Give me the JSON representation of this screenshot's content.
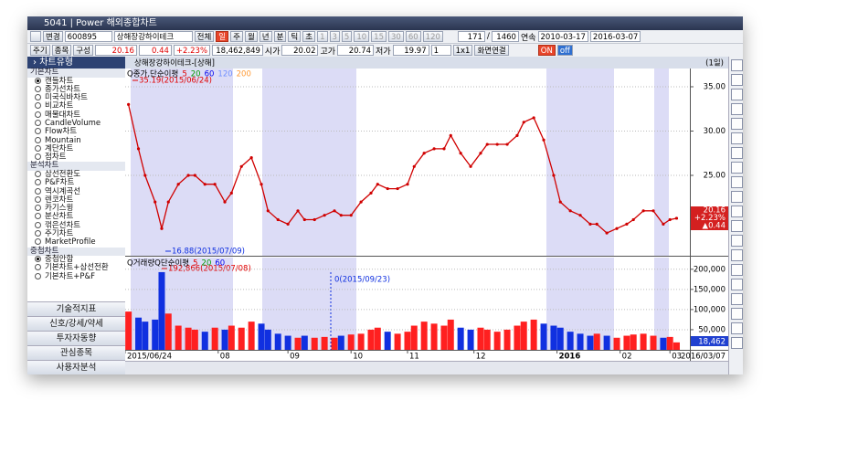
{
  "window": {
    "title": "5041 | Power 해외종합차트"
  },
  "toolbar": {
    "change": "변경",
    "code": "600895",
    "name": "상해장강하이테크",
    "all": "전체",
    "periods": [
      "일",
      "주",
      "월",
      "년",
      "분",
      "틱",
      "초"
    ],
    "intervals": [
      "1",
      "3",
      "5",
      "10",
      "15",
      "30",
      "60",
      "120"
    ],
    "count": "171",
    "sep": "/",
    "total": "1460",
    "continuous": "연속",
    "start": "2010-03-17",
    "end": "2016-03-07"
  },
  "quote": {
    "buttons": [
      "주기",
      "종목",
      "구성"
    ],
    "price": "20.16",
    "change": "0.44",
    "pct": "+2.23%",
    "volume": "18,462,849",
    "open_label": "시가",
    "open": "20.02",
    "high_label": "고가",
    "high": "20.74",
    "low_label": "저가",
    "low": "19.97",
    "split": "1",
    "layout": "1x1",
    "link": "화면연결",
    "on": "ON",
    "off": "off"
  },
  "sidebar": {
    "header": "차트유형",
    "groups": [
      {
        "title": "기본차트",
        "selected": 0,
        "items": [
          "캔들차트",
          "종가선차트",
          "미국식바차트",
          "비교차트",
          "매물대차트",
          "CandleVolume",
          "Flow차트",
          "Mountain",
          "계단차트",
          "점차트"
        ]
      },
      {
        "title": "분석차트",
        "items": [
          "삼선전환도",
          "P&F차트",
          "역시계곡선",
          "렌코차트",
          "카기스윙",
          "분산차트",
          "꺾은선차트",
          "주기차트",
          "MarketProfile"
        ]
      },
      {
        "title": "중첩차트",
        "selected": 0,
        "items": [
          "중첩안함",
          "기본차트+삼선전환",
          "기본차트+P&F"
        ]
      }
    ],
    "buttons": [
      "기술적지표",
      "신호/강세/약세",
      "투자자동향",
      "관심종목",
      "사용자분석"
    ]
  },
  "chart_data": [
    {
      "type": "line",
      "title": "상해장강하이테크-[상해]",
      "period": "(1일)",
      "legend": "Q종가,단순이평",
      "ma_periods": [
        "5",
        "20",
        "60",
        "120",
        "200"
      ],
      "ma_colors": [
        "#e00000",
        "#009900",
        "#0000ee",
        "#6f8fff",
        "#ff9933"
      ],
      "annotations": [
        "35.19(2015/06/24)",
        "16.88(2015/07/09)"
      ],
      "x": [
        1,
        4,
        6,
        9,
        11,
        13,
        16,
        19,
        21,
        24,
        27,
        30,
        32,
        35,
        38,
        41,
        43,
        46,
        49,
        52,
        54,
        57,
        60,
        63,
        65,
        68,
        71,
        74,
        76,
        79,
        82,
        85,
        87,
        90,
        93,
        96,
        98,
        101,
        104,
        107,
        109,
        112,
        115,
        118,
        120,
        123,
        126,
        129,
        131,
        134,
        137,
        140,
        142,
        145,
        148,
        151,
        153,
        156,
        159,
        162,
        164,
        166
      ],
      "xlim": [
        0,
        170
      ],
      "series": [
        {
          "name": "종가",
          "color": "#d00000",
          "values": [
            33,
            28,
            25,
            22,
            19,
            22,
            24,
            25,
            25,
            24,
            24,
            22,
            23,
            26,
            27,
            24,
            21,
            20,
            19.5,
            21,
            20,
            20,
            20.5,
            21,
            20.5,
            20.5,
            22,
            23,
            24,
            23.5,
            23.5,
            24,
            26,
            27.5,
            28,
            28,
            29.5,
            27.5,
            26,
            27.5,
            28.5,
            28.5,
            28.5,
            29.5,
            31,
            31.5,
            29,
            25,
            22,
            21,
            20.5,
            19.5,
            19.5,
            18.5,
            19,
            19.5,
            20,
            21,
            21,
            19.5,
            20,
            20.16
          ]
        }
      ],
      "ylim": [
        15.93,
        37.06
      ],
      "yticks": [
        {
          "value": 35,
          "label": "35.00"
        },
        {
          "value": 30,
          "label": "30.00"
        },
        {
          "value": 25,
          "label": "25.00"
        }
      ],
      "grid": true,
      "last_labels": [
        "20.16",
        "+2.23%",
        "▲0.44"
      ]
    },
    {
      "type": "bar",
      "legend": "Q거래량Q단순이평",
      "ma_periods": [
        "5",
        "20",
        "60"
      ],
      "ma_colors": [
        "#e00000",
        "#009900",
        "#0000ee"
      ],
      "annotations": [
        "192,866(2015/07/08)",
        "0(2015/09/23)"
      ],
      "x": [
        1,
        4,
        6,
        9,
        11,
        13,
        16,
        19,
        21,
        24,
        27,
        30,
        32,
        35,
        38,
        41,
        43,
        46,
        49,
        52,
        54,
        57,
        60,
        63,
        65,
        68,
        71,
        74,
        76,
        79,
        82,
        85,
        87,
        90,
        93,
        96,
        98,
        101,
        104,
        107,
        109,
        112,
        115,
        118,
        120,
        123,
        126,
        129,
        131,
        134,
        137,
        140,
        142,
        145,
        148,
        151,
        153,
        156,
        159,
        162,
        164,
        166
      ],
      "xlim": [
        0,
        170
      ],
      "series": [
        {
          "name": "거래량",
          "up_color": "#ff2020",
          "down_color": "#1030e0",
          "values": [
            95000,
            80000,
            70000,
            75000,
            192866,
            90000,
            60000,
            55000,
            50000,
            45000,
            55000,
            50000,
            60000,
            55000,
            70000,
            65000,
            50000,
            40000,
            35000,
            30000,
            35000,
            30000,
            32000,
            30000,
            35000,
            38000,
            40000,
            50000,
            55000,
            45000,
            40000,
            45000,
            60000,
            70000,
            65000,
            60000,
            75000,
            55000,
            50000,
            55000,
            50000,
            45000,
            50000,
            60000,
            70000,
            75000,
            65000,
            60000,
            55000,
            45000,
            40000,
            35000,
            40000,
            35000,
            30000,
            35000,
            38000,
            40000,
            35000,
            30000,
            32000,
            18462
          ]
        }
      ],
      "ylim": [
        0,
        229000
      ],
      "yticks": [
        {
          "value": 200000,
          "label": "200,000"
        },
        {
          "value": 150000,
          "label": "150,000"
        },
        {
          "value": 100000,
          "label": "100,000"
        },
        {
          "value": 50000,
          "label": "50,000"
        }
      ],
      "grid": true,
      "xticks": [
        {
          "value": 0,
          "label": "2015/06/24"
        },
        {
          "value": 28,
          "label": "08"
        },
        {
          "value": 49,
          "label": "09"
        },
        {
          "value": 68,
          "label": "10"
        },
        {
          "value": 85,
          "label": "11"
        },
        {
          "value": 105,
          "label": "12"
        },
        {
          "value": 130,
          "label": "2016"
        },
        {
          "value": 149,
          "label": "02"
        },
        {
          "value": 164,
          "label": "03"
        }
      ],
      "end_label": "2016/03/07",
      "last_label": "18,462"
    }
  ]
}
